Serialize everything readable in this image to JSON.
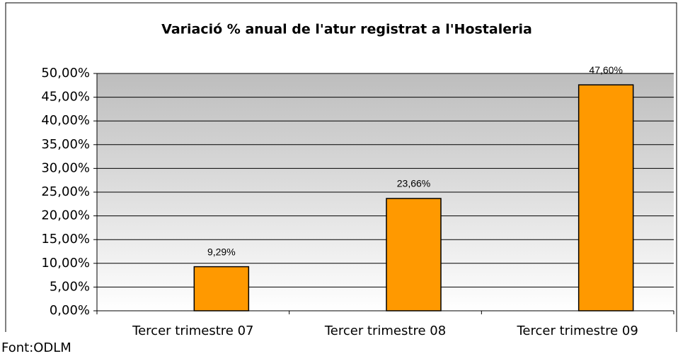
{
  "chart_data": {
    "type": "bar",
    "title": "Variació % anual de l'atur registrat a l'Hostaleria",
    "categories": [
      "Tercer trimestre 07",
      "Tercer trimestre 08",
      "Tercer trimestre 09"
    ],
    "values": [
      9.29,
      23.66,
      47.6
    ],
    "value_labels": [
      "9,29%",
      "23,66%",
      "47,60%"
    ],
    "color": "#ff9900",
    "ylim": [
      0,
      50
    ],
    "yticks": [
      {
        "value": 0,
        "label": "0,00%"
      },
      {
        "value": 5,
        "label": "5,00%"
      },
      {
        "value": 10,
        "label": "10,00%"
      },
      {
        "value": 15,
        "label": "15,00%"
      },
      {
        "value": 20,
        "label": "20,00%"
      },
      {
        "value": 25,
        "label": "25,00%"
      },
      {
        "value": 30,
        "label": "30,00%"
      },
      {
        "value": 35,
        "label": "35,00%"
      },
      {
        "value": 40,
        "label": "40,00%"
      },
      {
        "value": 45,
        "label": "45,00%"
      },
      {
        "value": 50,
        "label": "50,00%"
      }
    ],
    "grid": true,
    "source": "Font:ODLM"
  }
}
